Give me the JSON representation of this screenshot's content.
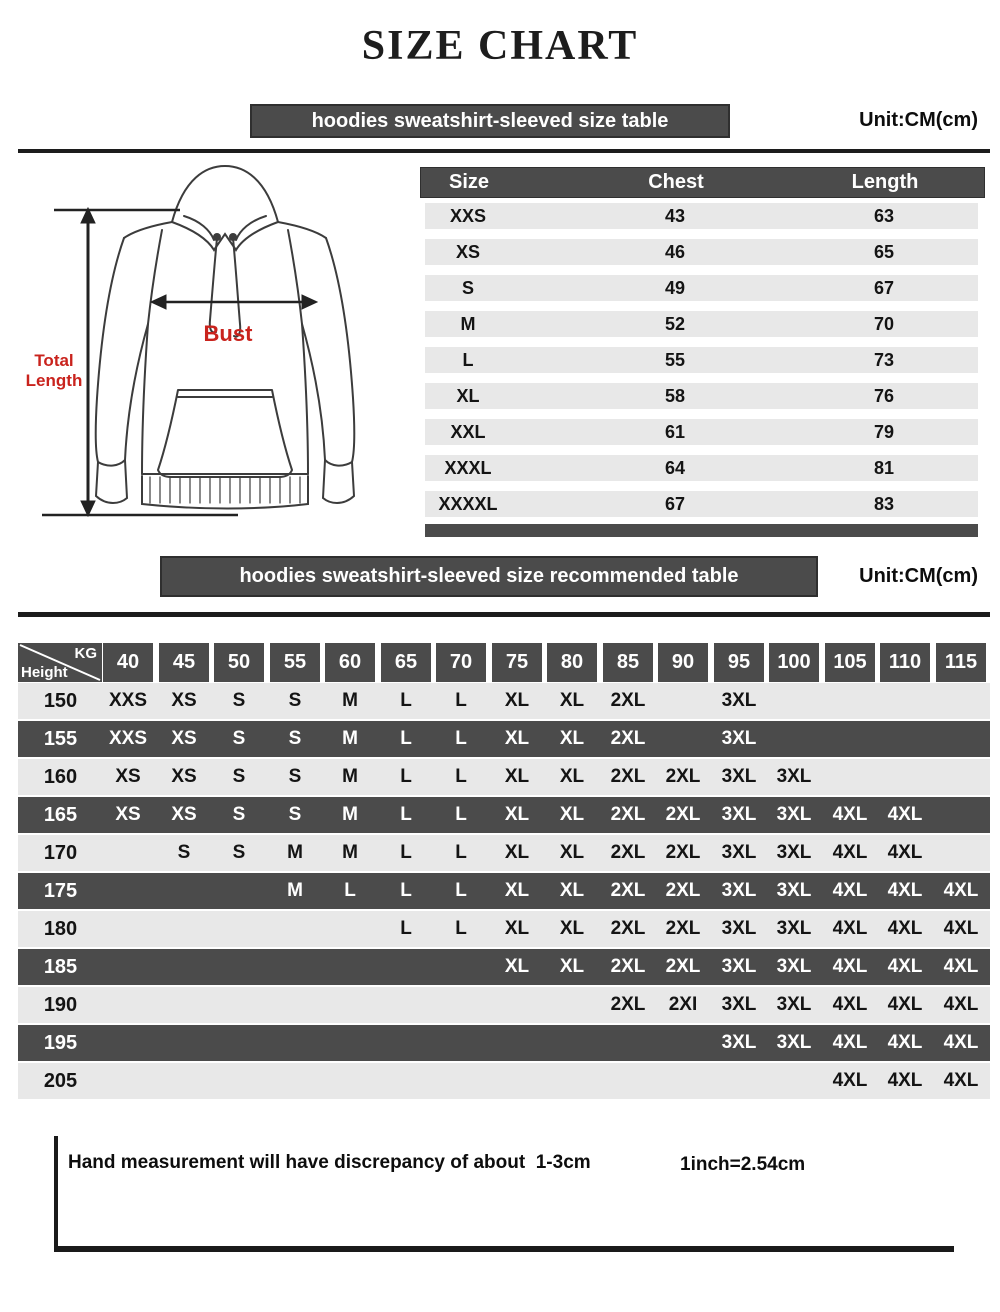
{
  "page_title": "SIZE CHART",
  "colors": {
    "dark_band": "#4b4b4b",
    "light_row": "#e8e8e8",
    "accent_red": "#c9231d",
    "line": "#1c1c1c"
  },
  "section_sleeved": {
    "banner": "hoodies sweatshirt-sleeved size  table",
    "unit": "Unit:CM(cm)",
    "diagram": {
      "bust": "Bust",
      "total_line1": "Total",
      "total_line2": "Length"
    },
    "table": {
      "headers": [
        "Size",
        "Chest",
        "Length"
      ],
      "rows": [
        [
          "XXS",
          "43",
          "63"
        ],
        [
          "XS",
          "46",
          "65"
        ],
        [
          "S",
          "49",
          "67"
        ],
        [
          "M",
          "52",
          "70"
        ],
        [
          "L",
          "55",
          "73"
        ],
        [
          "XL",
          "58",
          "76"
        ],
        [
          "XXL",
          "61",
          "79"
        ],
        [
          "XXXL",
          "64",
          "81"
        ],
        [
          "XXXXL",
          "67",
          "83"
        ]
      ]
    }
  },
  "section_recommended": {
    "banner": "hoodies sweatshirt-sleeved size recommended table",
    "unit": "Unit:CM(cm)",
    "table": {
      "corner_top": "KG",
      "corner_bottom": "Height",
      "weights": [
        "40",
        "45",
        "50",
        "55",
        "60",
        "65",
        "70",
        "75",
        "80",
        "85",
        "90",
        "95",
        "100",
        "105",
        "110",
        "115"
      ],
      "rows": [
        {
          "height": "150",
          "sizes": [
            "XXS",
            "XS",
            "S",
            "S",
            "M",
            "L",
            "L",
            "XL",
            "XL",
            "2XL",
            "",
            "3XL",
            "",
            "",
            "",
            ""
          ]
        },
        {
          "height": "155",
          "sizes": [
            "XXS",
            "XS",
            "S",
            "S",
            "M",
            "L",
            "L",
            "XL",
            "XL",
            "2XL",
            "",
            "3XL",
            "",
            "",
            "",
            ""
          ]
        },
        {
          "height": "160",
          "sizes": [
            "XS",
            "XS",
            "S",
            "S",
            "M",
            "L",
            "L",
            "XL",
            "XL",
            "2XL",
            "2XL",
            "3XL",
            "3XL",
            "",
            "",
            ""
          ]
        },
        {
          "height": "165",
          "sizes": [
            "XS",
            "XS",
            "S",
            "S",
            "M",
            "L",
            "L",
            "XL",
            "XL",
            "2XL",
            "2XL",
            "3XL",
            "3XL",
            "4XL",
            "4XL",
            ""
          ]
        },
        {
          "height": "170",
          "sizes": [
            "",
            "S",
            "S",
            "M",
            "M",
            "L",
            "L",
            "XL",
            "XL",
            "2XL",
            "2XL",
            "3XL",
            "3XL",
            "4XL",
            "4XL",
            ""
          ]
        },
        {
          "height": "175",
          "sizes": [
            "",
            "",
            "",
            "M",
            "L",
            "L",
            "L",
            "XL",
            "XL",
            "2XL",
            "2XL",
            "3XL",
            "3XL",
            "4XL",
            "4XL",
            "4XL"
          ]
        },
        {
          "height": "180",
          "sizes": [
            "",
            "",
            "",
            "",
            "",
            "L",
            "L",
            "XL",
            "XL",
            "2XL",
            "2XL",
            "3XL",
            "3XL",
            "4XL",
            "4XL",
            "4XL"
          ]
        },
        {
          "height": "185",
          "sizes": [
            "",
            "",
            "",
            "",
            "",
            "",
            "",
            "XL",
            "XL",
            "2XL",
            "2XL",
            "3XL",
            "3XL",
            "4XL",
            "4XL",
            "4XL"
          ]
        },
        {
          "height": "190",
          "sizes": [
            "",
            "",
            "",
            "",
            "",
            "",
            "",
            "",
            "",
            "2XL",
            "2XI",
            "3XL",
            "3XL",
            "4XL",
            "4XL",
            "4XL"
          ]
        },
        {
          "height": "195",
          "sizes": [
            "",
            "",
            "",
            "",
            "",
            "",
            "",
            "",
            "",
            "",
            "",
            "3XL",
            "3XL",
            "4XL",
            "4XL",
            "4XL"
          ]
        },
        {
          "height": "205",
          "sizes": [
            "",
            "",
            "",
            "",
            "",
            "",
            "",
            "",
            "",
            "",
            "",
            "",
            "",
            "4XL",
            "4XL",
            "4XL"
          ]
        }
      ]
    }
  },
  "footer": {
    "note": "Hand measurement will have discrepancy of about  1-3cm",
    "conversion": "1inch=2.54cm"
  },
  "chart_data": [
    {
      "type": "table",
      "title": "hoodies sweatshirt-sleeved size table (Unit: CM)",
      "columns": [
        "Size",
        "Chest",
        "Length"
      ],
      "rows": [
        [
          "XXS",
          43,
          63
        ],
        [
          "XS",
          46,
          65
        ],
        [
          "S",
          49,
          67
        ],
        [
          "M",
          52,
          70
        ],
        [
          "L",
          55,
          73
        ],
        [
          "XL",
          58,
          76
        ],
        [
          "XXL",
          61,
          79
        ],
        [
          "XXXL",
          64,
          81
        ],
        [
          "XXXXL",
          67,
          83
        ]
      ]
    },
    {
      "type": "table",
      "title": "hoodies sweatshirt-sleeved size recommended table (Unit: CM, Height x KG)",
      "columns": [
        "Height",
        "40",
        "45",
        "50",
        "55",
        "60",
        "65",
        "70",
        "75",
        "80",
        "85",
        "90",
        "95",
        "100",
        "105",
        "110",
        "115"
      ],
      "rows": [
        [
          "150",
          "XXS",
          "XS",
          "S",
          "S",
          "M",
          "L",
          "L",
          "XL",
          "XL",
          "2XL",
          "",
          "3XL",
          "",
          "",
          "",
          ""
        ],
        [
          "155",
          "XXS",
          "XS",
          "S",
          "S",
          "M",
          "L",
          "L",
          "XL",
          "XL",
          "2XL",
          "",
          "3XL",
          "",
          "",
          "",
          ""
        ],
        [
          "160",
          "XS",
          "XS",
          "S",
          "S",
          "M",
          "L",
          "L",
          "XL",
          "XL",
          "2XL",
          "2XL",
          "3XL",
          "3XL",
          "",
          "",
          ""
        ],
        [
          "165",
          "XS",
          "XS",
          "S",
          "S",
          "M",
          "L",
          "L",
          "XL",
          "XL",
          "2XL",
          "2XL",
          "3XL",
          "3XL",
          "4XL",
          "4XL",
          ""
        ],
        [
          "170",
          "",
          "S",
          "S",
          "M",
          "M",
          "L",
          "L",
          "XL",
          "XL",
          "2XL",
          "2XL",
          "3XL",
          "3XL",
          "4XL",
          "4XL",
          ""
        ],
        [
          "175",
          "",
          "",
          "",
          "M",
          "L",
          "L",
          "L",
          "XL",
          "XL",
          "2XL",
          "2XL",
          "3XL",
          "3XL",
          "4XL",
          "4XL",
          "4XL"
        ],
        [
          "180",
          "",
          "",
          "",
          "",
          "",
          "L",
          "L",
          "XL",
          "XL",
          "2XL",
          "2XL",
          "3XL",
          "3XL",
          "4XL",
          "4XL",
          "4XL"
        ],
        [
          "185",
          "",
          "",
          "",
          "",
          "",
          "",
          "",
          "XL",
          "XL",
          "2XL",
          "2XL",
          "3XL",
          "3XL",
          "4XL",
          "4XL",
          "4XL"
        ],
        [
          "190",
          "",
          "",
          "",
          "",
          "",
          "",
          "",
          "",
          "",
          "2XL",
          "2XI",
          "3XL",
          "3XL",
          "4XL",
          "4XL",
          "4XL"
        ],
        [
          "195",
          "",
          "",
          "",
          "",
          "",
          "",
          "",
          "",
          "",
          "",
          "",
          "3XL",
          "3XL",
          "4XL",
          "4XL",
          "4XL"
        ],
        [
          "205",
          "",
          "",
          "",
          "",
          "",
          "",
          "",
          "",
          "",
          "",
          "",
          "",
          "",
          "4XL",
          "4XL",
          "4XL"
        ]
      ]
    }
  ]
}
